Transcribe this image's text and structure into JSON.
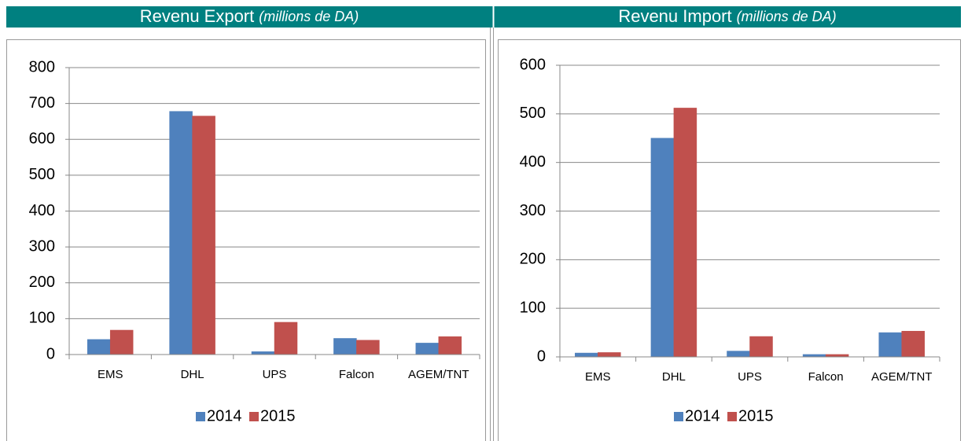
{
  "chart_data": [
    {
      "type": "bar",
      "title": "Revenu Export",
      "title_unit": "(millions de DA)",
      "categories": [
        "EMS",
        "DHL",
        "UPS",
        "Falcon",
        "AGEM/TNT"
      ],
      "series": [
        {
          "name": "2014",
          "color": "#4f81bd",
          "values": [
            42,
            678,
            8,
            45,
            32
          ]
        },
        {
          "name": "2015",
          "color": "#c0504d",
          "values": [
            68,
            665,
            90,
            40,
            50
          ]
        }
      ],
      "ylim": [
        0,
        800
      ],
      "yticks": [
        0,
        100,
        200,
        300,
        400,
        500,
        600,
        700,
        800
      ],
      "grid": true,
      "legend": "bottom"
    },
    {
      "type": "bar",
      "title": "Revenu Import",
      "title_unit": "(millions de DA)",
      "categories": [
        "EMS",
        "DHL",
        "UPS",
        "Falcon",
        "AGEM/TNT"
      ],
      "series": [
        {
          "name": "2014",
          "color": "#4f81bd",
          "values": [
            8,
            450,
            12,
            5,
            50
          ]
        },
        {
          "name": "2015",
          "color": "#c0504d",
          "values": [
            9,
            512,
            42,
            5,
            53
          ]
        }
      ],
      "ylim": [
        0,
        600
      ],
      "yticks": [
        0,
        100,
        200,
        300,
        400,
        500,
        600
      ],
      "grid": true,
      "legend": "bottom"
    }
  ]
}
